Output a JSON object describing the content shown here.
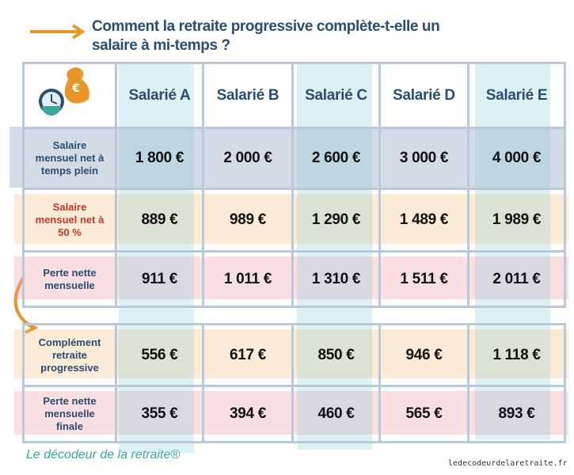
{
  "title": "Comment la retraite progressive complète-t-elle un salaire à mi-temps ?",
  "table": {
    "columns": [
      "Salarié A",
      "Salarié B",
      "Salarié C",
      "Salarié D",
      "Salarié E"
    ],
    "rows": [
      {
        "label": "Salaire mensuel net à temps plein",
        "cells": [
          "1 800 €",
          "2 000 €",
          "2 600 €",
          "3 000 €",
          "4 000 €"
        ]
      },
      {
        "label": "Salaire mensuel net à 50 %",
        "cells": [
          "889 €",
          "989 €",
          "1 290 €",
          "1 489 €",
          "1 989 €"
        ]
      },
      {
        "label": "Perte nette mensuelle",
        "cells": [
          "911 €",
          "1 011 €",
          "1 310 €",
          "1 511 €",
          "2 011 €"
        ]
      },
      {
        "label": "Complément retraite progressive",
        "cells": [
          "556 €",
          "617 €",
          "850 €",
          "946 €",
          "1 118 €"
        ]
      },
      {
        "label": "Perte nette mensuelle finale",
        "cells": [
          "355 €",
          "394 €",
          "460 €",
          "565 €",
          "893 €"
        ]
      }
    ]
  },
  "footer": {
    "brand": "Le décodeur de la retraite®",
    "url": "ledecodeurdelaretraite.fr"
  }
}
